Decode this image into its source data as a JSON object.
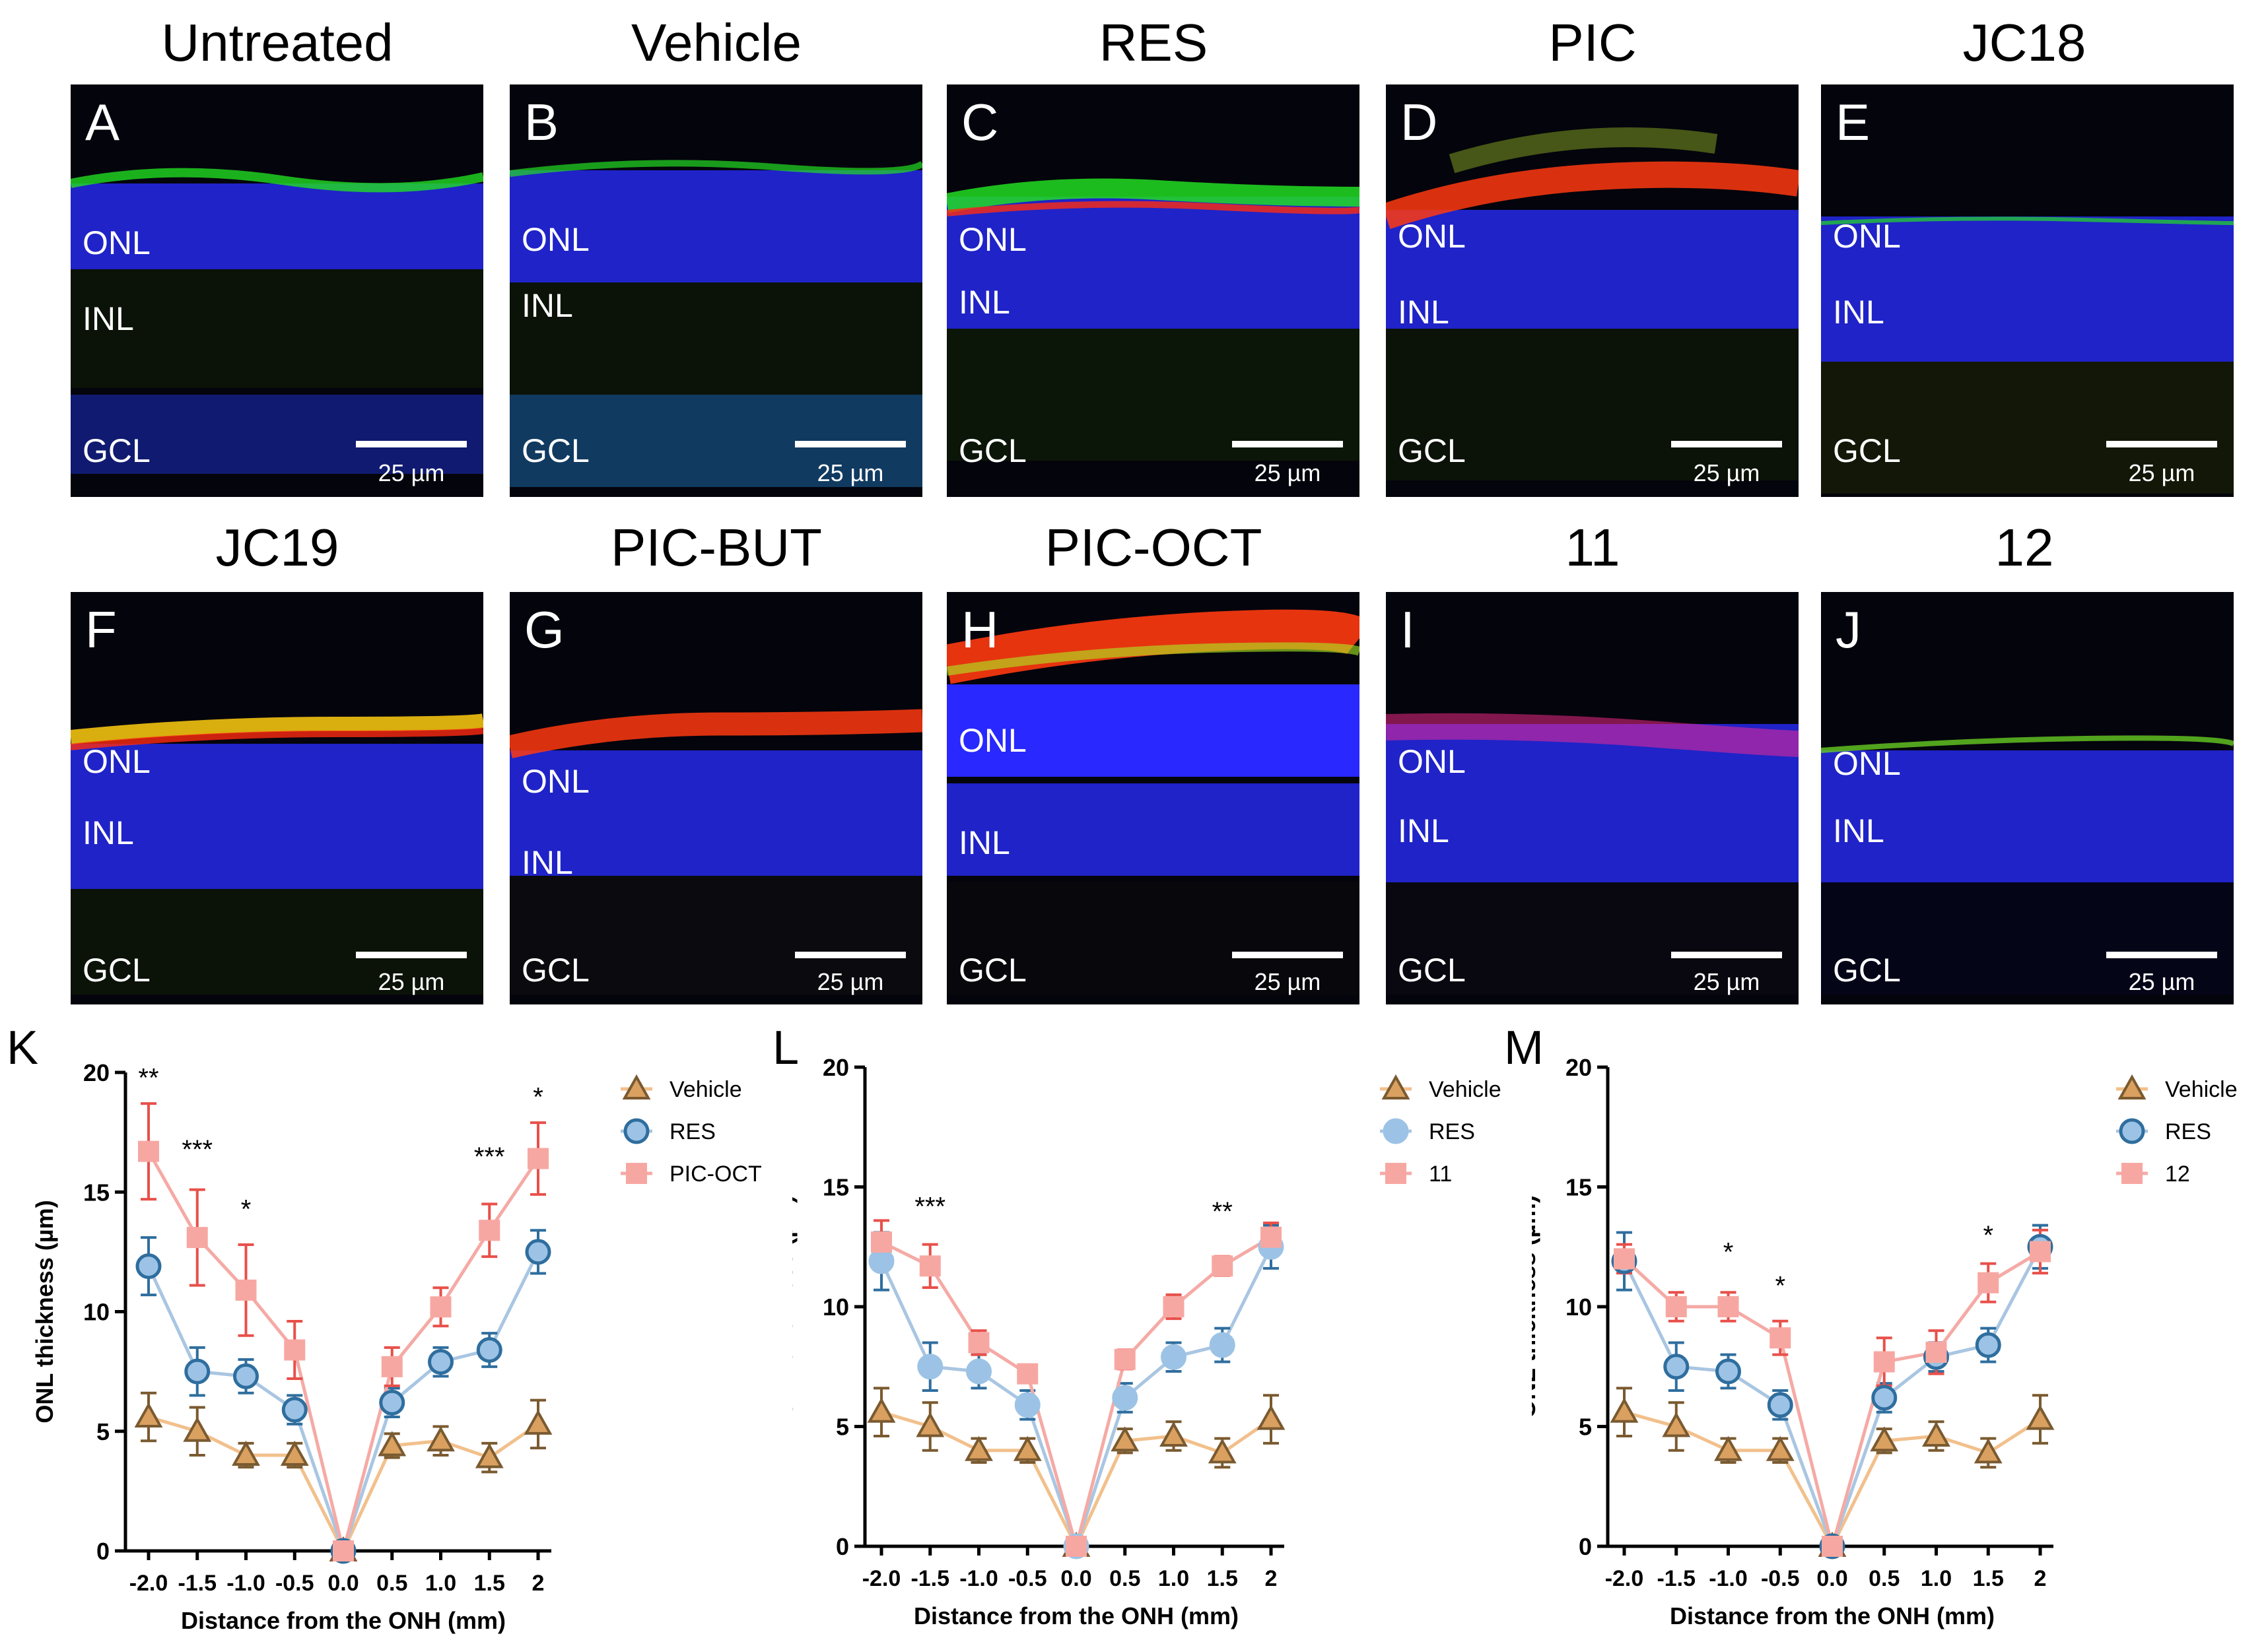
{
  "micrograph_panels": [
    {
      "id": "A",
      "title": "Untreated",
      "layers": {
        "onl": "ONL",
        "inl": "INL",
        "gcl": "GCL"
      },
      "scale_bar": "25 µm"
    },
    {
      "id": "B",
      "title": "Vehicle",
      "layers": {
        "onl": "ONL",
        "inl": "INL",
        "gcl": "GCL"
      },
      "scale_bar": "25 µm"
    },
    {
      "id": "C",
      "title": "RES",
      "layers": {
        "onl": "ONL",
        "inl": "INL",
        "gcl": "GCL"
      },
      "scale_bar": "25 µm"
    },
    {
      "id": "D",
      "title": "PIC",
      "layers": {
        "onl": "ONL",
        "inl": "INL",
        "gcl": "GCL"
      },
      "scale_bar": "25 µm"
    },
    {
      "id": "E",
      "title": "JC18",
      "layers": {
        "onl": "ONL",
        "inl": "INL",
        "gcl": "GCL"
      },
      "scale_bar": "25 µm"
    },
    {
      "id": "F",
      "title": "JC19",
      "layers": {
        "onl": "ONL",
        "inl": "INL",
        "gcl": "GCL"
      },
      "scale_bar": "25 µm"
    },
    {
      "id": "G",
      "title": "PIC-BUT",
      "layers": {
        "onl": "ONL",
        "inl": "INL",
        "gcl": "GCL"
      },
      "scale_bar": "25 µm"
    },
    {
      "id": "H",
      "title": "PIC-OCT",
      "layers": {
        "onl": "ONL",
        "inl": "INL",
        "gcl": "GCL"
      },
      "scale_bar": "25 µm"
    },
    {
      "id": "I",
      "title": "11",
      "layers": {
        "onl": "ONL",
        "inl": "INL",
        "gcl": "GCL"
      },
      "scale_bar": "25 µm"
    },
    {
      "id": "J",
      "title": "12",
      "layers": {
        "onl": "ONL",
        "inl": "INL",
        "gcl": "GCL"
      },
      "scale_bar": "25 µm"
    }
  ],
  "colors": {
    "vehicle_line": "#f2c08c",
    "vehicle_marker": "#d9a060",
    "vehicle_edge": "#7a5a30",
    "res_line": "#a9c6e2",
    "res_marker": "#9cc3e6",
    "res_edge": "#2f6e9e",
    "treat_line": "#f5aaa5",
    "treat_marker": "#f7a7a2",
    "treat_err": "#e8504a",
    "dapi": "#1a1ae6",
    "green": "#22dd22",
    "red": "#ff2a10"
  },
  "chart_data": [
    {
      "panel": "K",
      "type": "line",
      "xlabel": "Distance from the ONH (mm)",
      "ylabel": "ONL thickness (µm)",
      "x": [
        -2.0,
        -1.5,
        -1.0,
        -0.5,
        0.0,
        0.5,
        1.0,
        1.5,
        2
      ],
      "xticklabels": [
        "-2.0",
        "-1.5",
        "-1.0",
        "-0.5",
        "0.0",
        "0.5",
        "1.0",
        "1.5",
        "2"
      ],
      "ylim": [
        0,
        20
      ],
      "yticks": [
        0,
        5,
        10,
        15,
        20
      ],
      "legend": "top-right",
      "series": [
        {
          "name": "Vehicle",
          "marker": "triangle",
          "values": [
            5.6,
            5.0,
            4.0,
            4.0,
            0,
            4.4,
            4.6,
            3.9,
            5.3
          ],
          "err": [
            1.0,
            1.0,
            0.5,
            0.5,
            0,
            0.5,
            0.6,
            0.6,
            1.0
          ]
        },
        {
          "name": "RES",
          "marker": "circle",
          "values": [
            11.9,
            7.5,
            7.3,
            5.9,
            0,
            6.2,
            7.9,
            8.4,
            12.5
          ],
          "err": [
            1.2,
            1.0,
            0.7,
            0.6,
            0,
            0.6,
            0.6,
            0.7,
            0.9
          ]
        },
        {
          "name": "PIC-OCT",
          "marker": "square",
          "values": [
            16.7,
            13.1,
            10.9,
            8.4,
            0,
            7.7,
            10.2,
            13.4,
            16.4
          ],
          "err": [
            2.0,
            2.0,
            1.9,
            1.2,
            0,
            0.8,
            0.8,
            1.1,
            1.5
          ]
        }
      ],
      "annotations": [
        {
          "x": -2.0,
          "text": "**",
          "y": 19.8
        },
        {
          "x": -1.5,
          "text": "***",
          "y": 16.8
        },
        {
          "x": -1.0,
          "text": "*",
          "y": 14.3
        },
        {
          "x": 1.5,
          "text": "***",
          "y": 16.5
        },
        {
          "x": 2,
          "text": "*",
          "y": 19.0
        }
      ]
    },
    {
      "panel": "L",
      "type": "line",
      "xlabel": "Distance from the ONH (mm)",
      "ylabel": "ONL thickness (µm)",
      "x": [
        -2.0,
        -1.5,
        -1.0,
        -0.5,
        0.0,
        0.5,
        1.0,
        1.5,
        2
      ],
      "xticklabels": [
        "-2.0",
        "-1.5",
        "-1.0",
        "-0.5",
        "0.0",
        "0.5",
        "1.0",
        "1.5",
        "2"
      ],
      "ylim": [
        0,
        20
      ],
      "yticks": [
        0,
        5,
        10,
        15,
        20
      ],
      "legend": "top-right",
      "series": [
        {
          "name": "Vehicle",
          "marker": "triangle",
          "values": [
            5.6,
            5.0,
            4.0,
            4.0,
            0,
            4.4,
            4.6,
            3.9,
            5.3
          ],
          "err": [
            1.0,
            1.0,
            0.5,
            0.5,
            0,
            0.5,
            0.6,
            0.6,
            1.0
          ]
        },
        {
          "name": "RES",
          "marker": "circle-light",
          "values": [
            11.9,
            7.5,
            7.3,
            5.9,
            0,
            6.2,
            7.9,
            8.4,
            12.5
          ],
          "err": [
            1.2,
            1.0,
            0.7,
            0.6,
            0,
            0.6,
            0.6,
            0.7,
            0.9
          ]
        },
        {
          "name": "11",
          "marker": "square",
          "values": [
            12.7,
            11.7,
            8.5,
            7.2,
            0,
            7.8,
            10.0,
            11.7,
            12.9
          ],
          "err": [
            0.9,
            0.9,
            0.5,
            0.3,
            0,
            0.4,
            0.5,
            0.4,
            0.6
          ]
        }
      ],
      "annotations": [
        {
          "x": -1.5,
          "text": "***",
          "y": 14.2
        },
        {
          "x": 1.5,
          "text": "**",
          "y": 14.0
        }
      ]
    },
    {
      "panel": "M",
      "type": "line",
      "xlabel": "Distance from the ONH (mm)",
      "ylabel": "ONL thickness (µm)",
      "x": [
        -2.0,
        -1.5,
        -1.0,
        -0.5,
        0.0,
        0.5,
        1.0,
        1.5,
        2
      ],
      "xticklabels": [
        "-2.0",
        "-1.5",
        "-1.0",
        "-0.5",
        "0.0",
        "0.5",
        "1.0",
        "1.5",
        "2"
      ],
      "ylim": [
        0,
        20
      ],
      "yticks": [
        0,
        5,
        10,
        15,
        20
      ],
      "legend": "top-right",
      "series": [
        {
          "name": "Vehicle",
          "marker": "triangle",
          "values": [
            5.6,
            5.0,
            4.0,
            4.0,
            0,
            4.4,
            4.6,
            3.9,
            5.3
          ],
          "err": [
            1.0,
            1.0,
            0.5,
            0.5,
            0,
            0.5,
            0.6,
            0.6,
            1.0
          ]
        },
        {
          "name": "RES",
          "marker": "circle",
          "values": [
            11.9,
            7.5,
            7.3,
            5.9,
            0,
            6.2,
            7.9,
            8.4,
            12.5
          ],
          "err": [
            1.2,
            1.0,
            0.7,
            0.6,
            0,
            0.6,
            0.6,
            0.7,
            0.9
          ]
        },
        {
          "name": "12",
          "marker": "square",
          "values": [
            12.0,
            10.0,
            10.0,
            8.7,
            0,
            7.7,
            8.1,
            11.0,
            12.3
          ],
          "err": [
            0.6,
            0.6,
            0.6,
            0.7,
            0,
            1.0,
            0.9,
            0.8,
            0.9
          ]
        }
      ],
      "annotations": [
        {
          "x": -1.0,
          "text": "*",
          "y": 12.3
        },
        {
          "x": -0.5,
          "text": "*",
          "y": 10.9
        },
        {
          "x": 1.5,
          "text": "*",
          "y": 13.0
        }
      ]
    }
  ]
}
